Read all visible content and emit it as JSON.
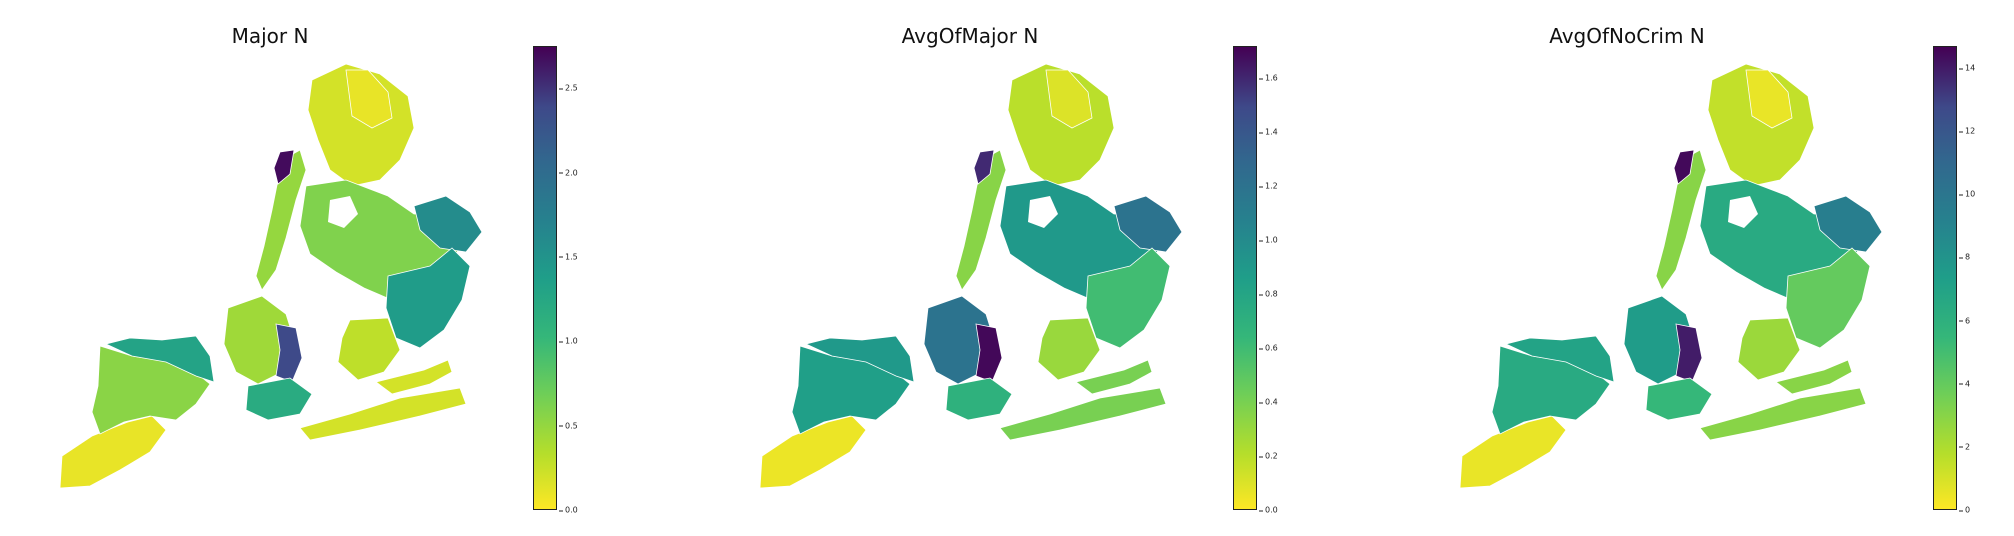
{
  "colors": {
    "viridis": [
      "#fde725",
      "#b5de2b",
      "#6ece58",
      "#35b779",
      "#1f9e89",
      "#26828e",
      "#31688e",
      "#3e4989",
      "#440154"
    ]
  },
  "panels": [
    {
      "title": "Major N",
      "colorbar": {
        "min": 0.0,
        "max": 2.75,
        "ticks": [
          "0.0",
          "0.5",
          "1.0",
          "1.5",
          "2.0",
          "2.5"
        ]
      },
      "levels": {
        "staten": 0.1,
        "staten_north": 0.55,
        "staten_ne": 1.3,
        "brooklyn_sw": 0.45,
        "brooklyn_mid": 2.4,
        "brooklyn_south": 1.2,
        "brooklyn_coast": 0.2,
        "queens_east": 1.4,
        "queens_ne": 1.6,
        "queens_mid": 0.6,
        "queens_south": 0.3,
        "manhattan": 0.5,
        "manhattan_hot": 2.7,
        "bronx": 0.2,
        "bronx_east": 0.1,
        "rockaway": 0.2
      }
    },
    {
      "title": "AvgOfMajor N",
      "colorbar": {
        "min": 0.0,
        "max": 1.72,
        "ticks": [
          "0.0",
          "0.2",
          "0.4",
          "0.6",
          "0.8",
          "1.0",
          "1.2",
          "1.4",
          "1.6"
        ]
      },
      "levels": {
        "staten": 0.05,
        "staten_north": 0.85,
        "staten_ne": 0.9,
        "brooklyn_sw": 1.2,
        "brooklyn_mid": 1.7,
        "brooklyn_south": 0.7,
        "brooklyn_coast": 0.4,
        "queens_east": 0.6,
        "queens_ne": 1.2,
        "queens_mid": 0.9,
        "queens_south": 0.3,
        "manhattan": 0.35,
        "manhattan_hot": 1.6,
        "bronx": 0.2,
        "bronx_east": 0.1,
        "rockaway": 0.4
      }
    },
    {
      "title": "AvgOfNoCrim N",
      "colorbar": {
        "min": 0,
        "max": 14.7,
        "ticks": [
          "0",
          "2",
          "4",
          "6",
          "8",
          "10",
          "12",
          "14"
        ]
      },
      "levels": {
        "staten": 0.5,
        "staten_north": 6.5,
        "staten_ne": 7.0,
        "brooklyn_sw": 7.5,
        "brooklyn_mid": 14.0,
        "brooklyn_south": 5.5,
        "brooklyn_coast": 3.0,
        "queens_east": 4.0,
        "queens_ne": 9.5,
        "queens_mid": 6.5,
        "queens_south": 2.5,
        "manhattan": 3.0,
        "manhattan_hot": 14.5,
        "bronx": 1.5,
        "bronx_east": 0.5,
        "rockaway": 3.0
      }
    }
  ]
}
